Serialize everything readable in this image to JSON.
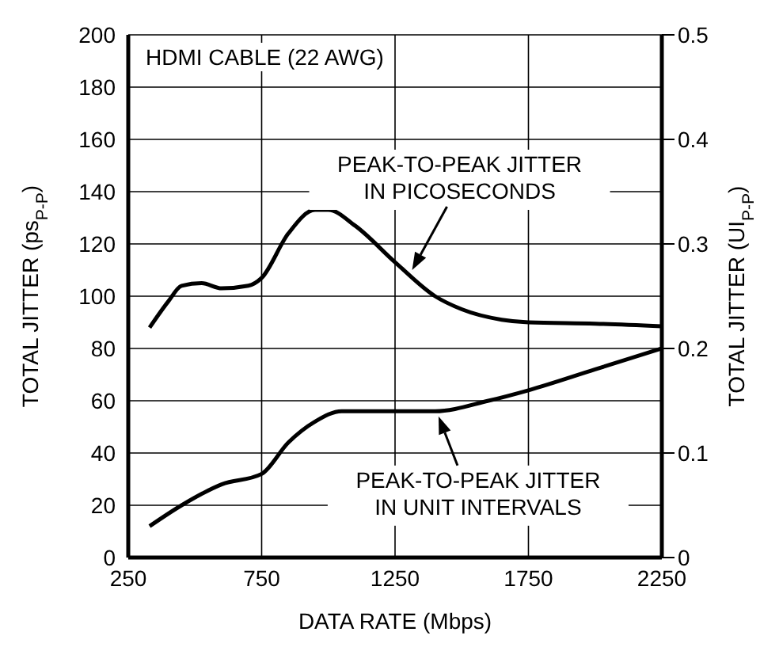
{
  "chart_data": {
    "type": "line",
    "xlabel": "DATA RATE (Mbps)",
    "ylabel": "TOTAL JITTER (ps$_{P-P}$)",
    "y2label": "TOTAL JITTER (UI$_{P-P}$)",
    "annotations": [
      "HDMI CABLE (22 AWG)",
      {
        "text": "PEAK-TO-PEAK JITTER\nIN PICOSECONDS",
        "x": 1314,
        "y": 110
      },
      {
        "text": "PEAK-TO-PEAK JITTER\nIN UNIT INTERVALS",
        "x": 1413,
        "y": 54
      }
    ],
    "series": [
      {
        "color": "#000000",
        "x": [
          330,
          400,
          450,
          525,
          600,
          700,
          750,
          850,
          950,
          1000,
          1100,
          1250,
          1400,
          1500,
          1650,
          1750,
          2000,
          2250
        ],
        "values": [
          88,
          98,
          104,
          105,
          103,
          104,
          107,
          124,
          133,
          133,
          127,
          113,
          100,
          95,
          91,
          90,
          89.5,
          88.5
        ]
      },
      {
        "color": "#000000",
        "axis": "y2",
        "x": [
          330,
          450,
          600,
          750,
          850,
          950,
          1050,
          1250,
          1400,
          1600,
          1750,
          2000,
          2250
        ],
        "values": [
          0.03,
          0.05,
          0.07,
          0.08,
          0.11,
          0.13,
          0.14,
          0.14,
          0.14,
          0.15,
          0.16,
          0.18,
          0.2
        ]
      }
    ],
    "xlim": [
      250,
      2250
    ],
    "xticks": [
      250,
      750,
      1250,
      1750,
      2250
    ],
    "ylim": [
      0,
      200
    ],
    "yticks": [
      0,
      20,
      40,
      60,
      80,
      100,
      120,
      140,
      160,
      180,
      200
    ],
    "y2lim": [
      0,
      0.5
    ],
    "y2ticks": [
      0,
      0.1,
      0.2,
      0.3,
      0.4,
      0.5
    ],
    "grid": true,
    "legend": false,
    "marker": "none",
    "line_style": "solid"
  }
}
